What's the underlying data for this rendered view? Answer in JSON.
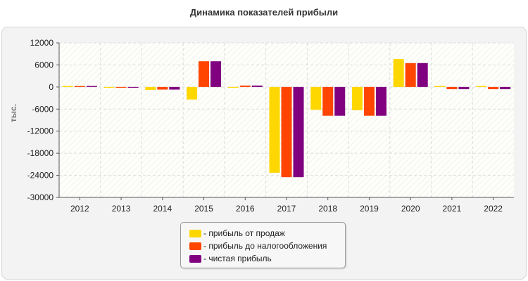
{
  "chart_data": {
    "type": "bar",
    "title": "Динамика показателей прибыли",
    "ylabel": "тыс.",
    "xlabel": "",
    "categories": [
      "2012",
      "2013",
      "2014",
      "2015",
      "2016",
      "2017",
      "2018",
      "2019",
      "2020",
      "2021",
      "2022"
    ],
    "ylim": [
      -30000,
      12000
    ],
    "yticks": [
      12000,
      6000,
      0,
      -6000,
      -12000,
      -18000,
      -24000,
      -30000
    ],
    "ytick_labels": [
      "12000",
      "6000",
      "0",
      "-6000",
      "-12000",
      "-18000",
      "-24000",
      "-30000"
    ],
    "series": [
      {
        "name": "- прибыль от продаж",
        "color": "#FFD700",
        "values": [
          300,
          -200,
          -800,
          -3400,
          -200,
          -23300,
          -6200,
          -6300,
          7600,
          300,
          300
        ]
      },
      {
        "name": "- прибыль до налогообложения",
        "color": "#FF4500",
        "values": [
          300,
          -200,
          -700,
          7000,
          400,
          -24500,
          -7800,
          -7800,
          6500,
          -600,
          -600
        ]
      },
      {
        "name": "- чистая прибыль",
        "color": "#800080",
        "values": [
          300,
          -200,
          -700,
          7000,
          400,
          -24500,
          -7800,
          -7800,
          6500,
          -600,
          -600
        ]
      }
    ],
    "grid": true,
    "legend_position": "bottom-center"
  }
}
